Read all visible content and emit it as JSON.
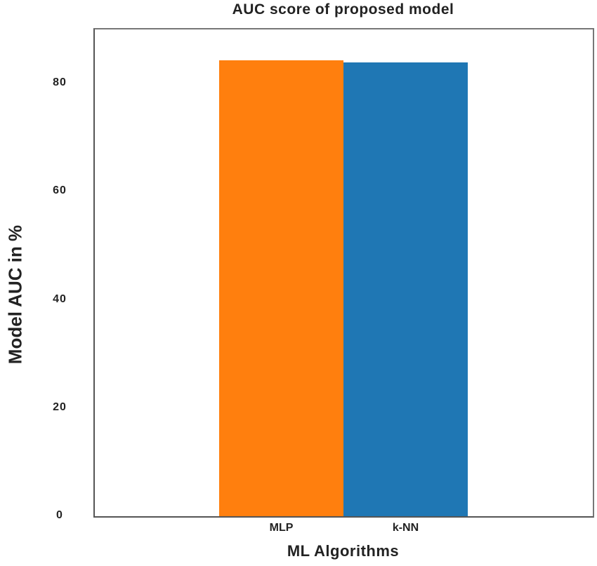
{
  "chart_data": {
    "type": "bar",
    "title": "AUC score of proposed model",
    "xlabel": "ML Algorithms",
    "ylabel": "Model AUC in %",
    "categories": [
      "MLP",
      "k-NN"
    ],
    "values": [
      84.3,
      83.9
    ],
    "colors": [
      "#ff7f0e",
      "#1f77b4"
    ],
    "yticks": [
      0,
      20,
      40,
      60,
      80
    ],
    "ylim": [
      0,
      90
    ],
    "grid": false,
    "legend": null
  }
}
